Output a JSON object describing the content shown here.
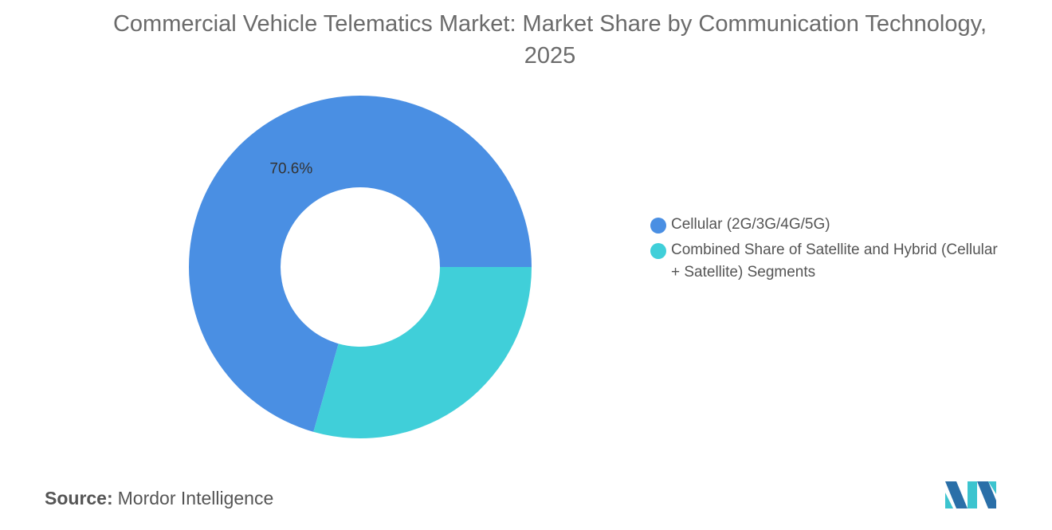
{
  "chart_data": {
    "type": "donut",
    "title": "Commercial Vehicle Telematics Market: Market Share by Communication Technology, 2025",
    "categories": [
      "Cellular (2G/3G/4G/5G)",
      "Combined Share of Satellite and Hybrid (Cellular + Satellite) Segments"
    ],
    "values": [
      70.6,
      29.4
    ],
    "value_labels": [
      "70.6%",
      null
    ],
    "colors": [
      "#4a8fe3",
      "#40cfd9"
    ],
    "source_label": "Source:",
    "source": "Mordor Intelligence"
  }
}
